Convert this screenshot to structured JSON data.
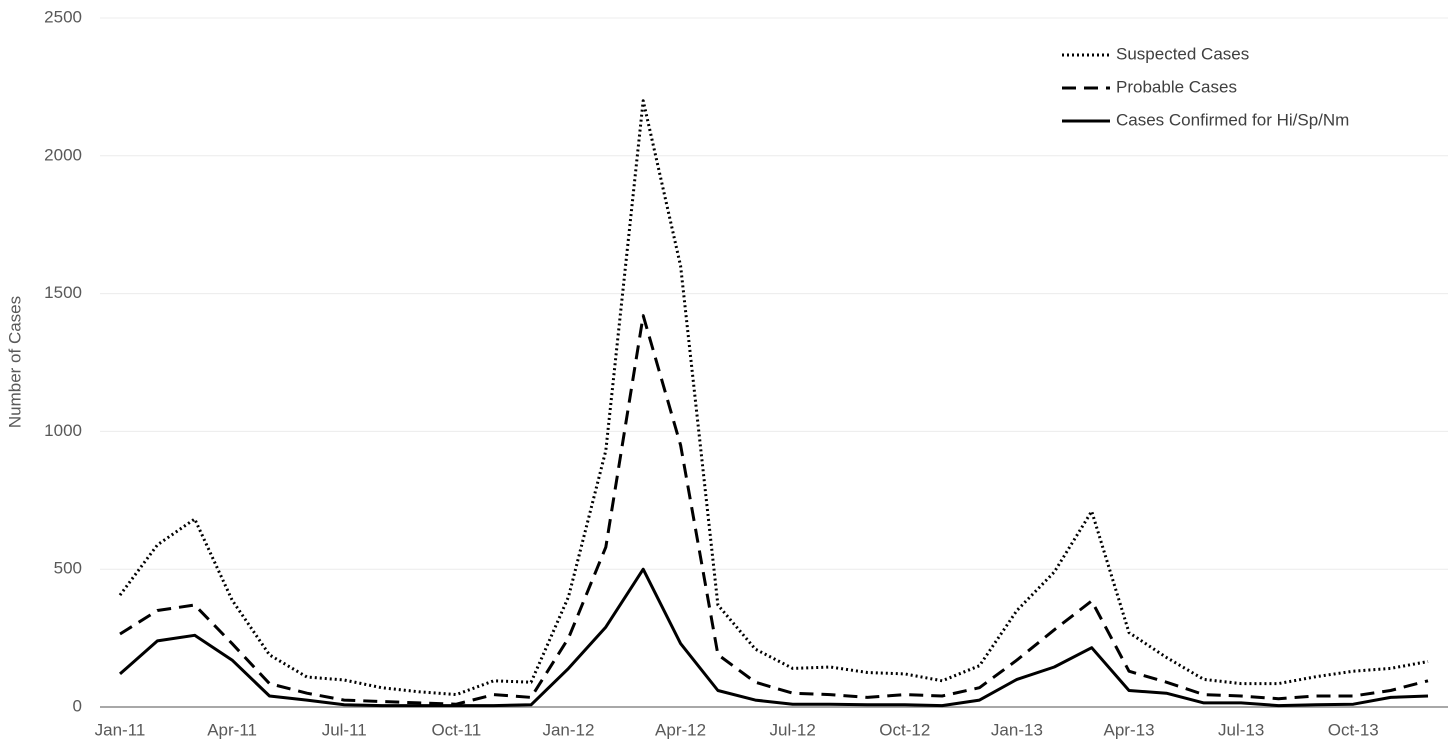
{
  "chart_data": {
    "type": "line",
    "y_label": "Number of Cases",
    "categories": [
      "Jan-11",
      null,
      null,
      "Apr-11",
      null,
      null,
      "Jul-11",
      null,
      null,
      "Oct-11",
      null,
      null,
      "Jan-12",
      null,
      null,
      "Apr-12",
      null,
      null,
      "Jul-12",
      null,
      null,
      "Oct-12",
      null,
      null,
      "Jan-13",
      null,
      null,
      "Apr-13",
      null,
      null,
      "Jul-13",
      null,
      null,
      "Oct-13",
      null,
      null
    ],
    "series": [
      {
        "name": "Suspected Cases",
        "color": "#000000",
        "dash": "dotted",
        "values": [
          406,
          588,
          682,
          388,
          189,
          109,
          98,
          70,
          55,
          45,
          95,
          90,
          400,
          930,
          2200,
          1600,
          370,
          210,
          140,
          145,
          125,
          120,
          95,
          150,
          350,
          490,
          710,
          270,
          180,
          100,
          85,
          85,
          110,
          130,
          140,
          165
        ]
      },
      {
        "name": "Probable Cases",
        "color": "#000000",
        "dash": "dashed",
        "values": [
          265,
          350,
          370,
          230,
          85,
          50,
          25,
          20,
          15,
          10,
          45,
          35,
          250,
          580,
          1420,
          950,
          190,
          90,
          50,
          45,
          35,
          45,
          40,
          70,
          170,
          280,
          385,
          130,
          90,
          45,
          40,
          30,
          40,
          40,
          60,
          95
        ]
      },
      {
        "name": "Cases Confirmed for Hi/Sp/Nm",
        "color": "#000000",
        "dash": "solid",
        "values": [
          120,
          240,
          260,
          170,
          40,
          25,
          8,
          5,
          5,
          5,
          5,
          8,
          140,
          290,
          500,
          230,
          60,
          25,
          10,
          10,
          8,
          8,
          5,
          25,
          100,
          145,
          215,
          60,
          50,
          15,
          15,
          5,
          8,
          10,
          35,
          40
        ]
      }
    ],
    "ylim": [
      0,
      2500
    ],
    "yticks": [
      0,
      500,
      1000,
      1500,
      2000,
      2500
    ],
    "grid": true,
    "legend": "top-right"
  }
}
